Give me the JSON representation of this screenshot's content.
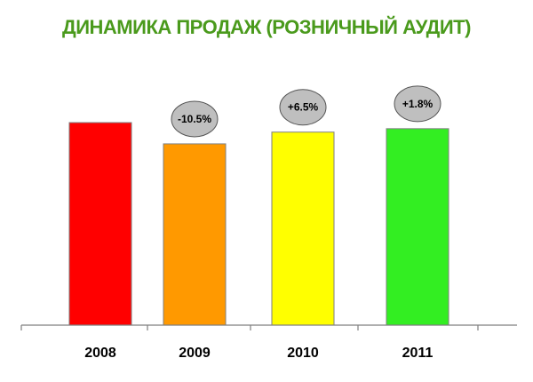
{
  "chart_data": {
    "type": "bar",
    "title": "ДИНАМИКА ПРОДАЖ (РОЗНИЧНЫЙ АУДИТ)",
    "categories": [
      "2008",
      "2009",
      "2010",
      "2011"
    ],
    "values": [
      100,
      89.5,
      95.3,
      97.0
    ],
    "ylim": [
      0,
      100
    ],
    "grid": false,
    "colors": {
      "title": "#4a9a1c",
      "bars": [
        "#ff0000",
        "#ff9900",
        "#ffff00",
        "#33ee22"
      ],
      "bubble": "#bfbfbf"
    },
    "annotations": [
      {
        "category": "2008",
        "text": ""
      },
      {
        "category": "2009",
        "text": "-10.5%"
      },
      {
        "category": "2010",
        "text": "+6.5%"
      },
      {
        "category": "2011",
        "text": "+1.8%"
      }
    ]
  }
}
